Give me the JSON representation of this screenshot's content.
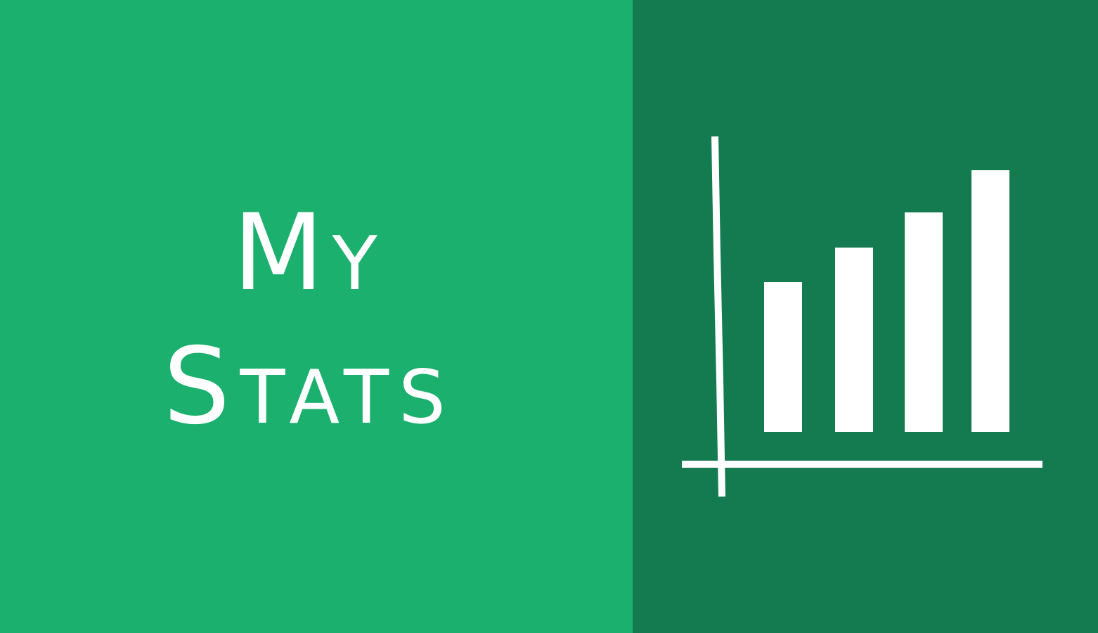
{
  "banner": {
    "title_line1": "My",
    "title_line2": "Stats"
  },
  "colors": {
    "left_background": "#1cb06e",
    "right_background": "#137b4f",
    "foreground": "#ffffff"
  },
  "icon": {
    "name": "bar-chart-icon",
    "bar_levels": [
      0.56,
      0.69,
      0.82,
      0.98
    ]
  }
}
